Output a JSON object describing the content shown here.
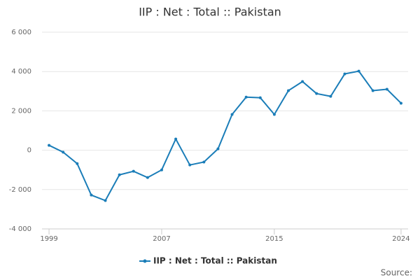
{
  "chart_data": {
    "type": "line",
    "title": "IIP : Net : Total :: Pakistan",
    "x": [
      1999,
      2000,
      2001,
      2002,
      2003,
      2004,
      2005,
      2006,
      2007,
      2008,
      2009,
      2010,
      2011,
      2012,
      2013,
      2014,
      2015,
      2016,
      2017,
      2018,
      2019,
      2020,
      2021,
      2022,
      2023,
      2024
    ],
    "series": [
      {
        "name": "IIP : Net : Total :: Pakistan",
        "color": "#1a7db8",
        "values": [
          250,
          -100,
          -680,
          -2280,
          -2560,
          -1250,
          -1070,
          -1390,
          -1000,
          570,
          -750,
          -600,
          70,
          1820,
          2700,
          2670,
          1820,
          3030,
          3490,
          2880,
          2740,
          3880,
          4020,
          3030,
          3100,
          2390
        ]
      }
    ],
    "xlim": [
      1998.5,
      2024.5
    ],
    "xticks": [
      1999,
      2007,
      2015,
      2024
    ],
    "ylim": [
      -4000,
      6000
    ],
    "yticks": [
      {
        "value": -4000,
        "label": "-4 000"
      },
      {
        "value": -2000,
        "label": "-2 000"
      },
      0,
      {
        "value": 2000,
        "label": "2 000"
      },
      {
        "value": 4000,
        "label": "4 000"
      },
      {
        "value": 6000,
        "label": "6 000"
      }
    ],
    "grid": true,
    "source": "Source:"
  }
}
